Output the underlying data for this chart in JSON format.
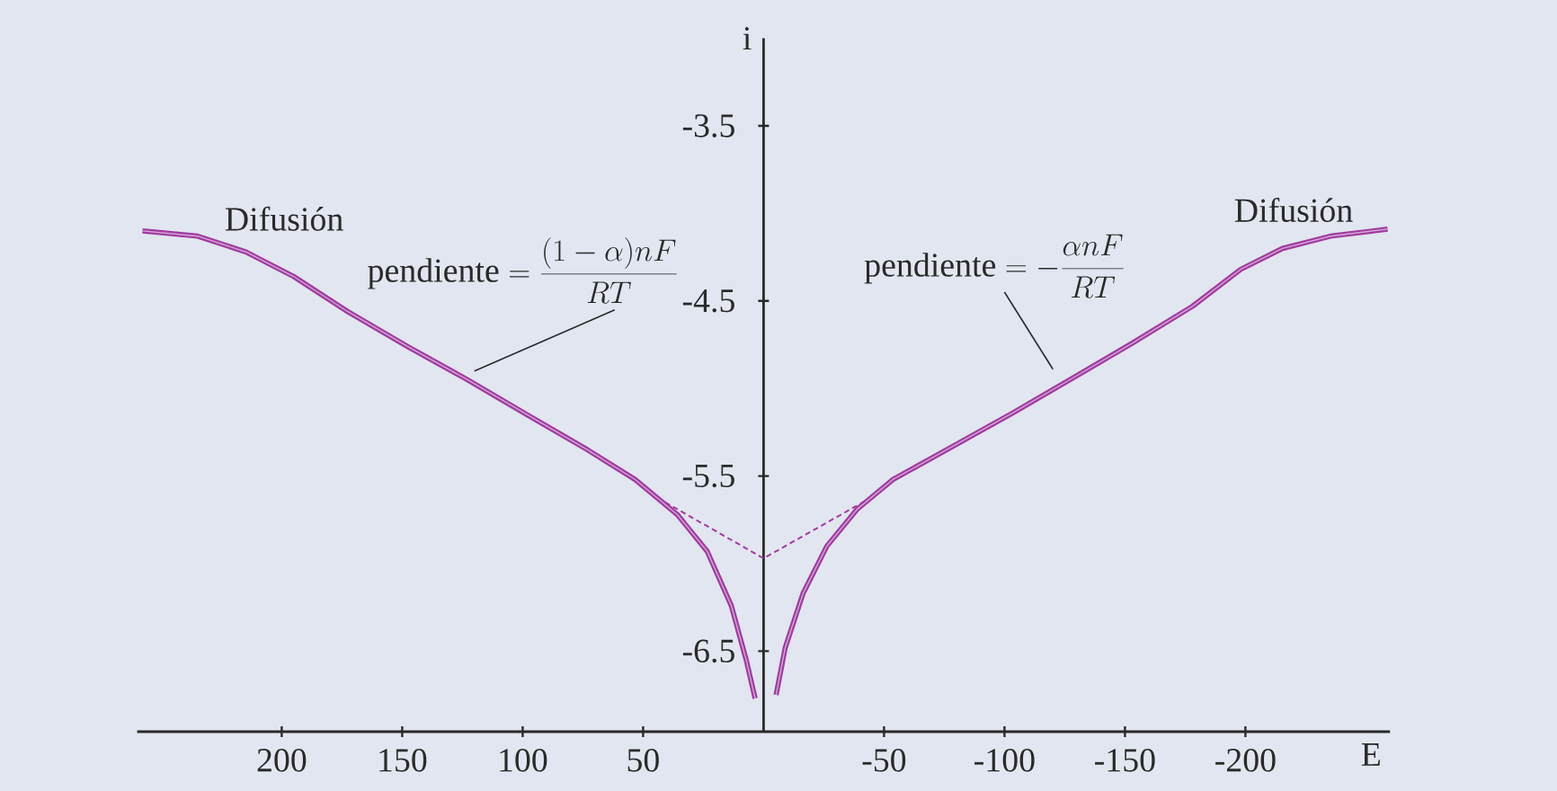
{
  "chart_data": {
    "type": "line",
    "xlabel": "E",
    "ylabel": "i",
    "xlim": [
      260,
      -260
    ],
    "ylim": [
      -6.96,
      -3.0
    ],
    "xticks": [
      200,
      150,
      100,
      50,
      -50,
      -100,
      -150,
      -200
    ],
    "yticks": [
      -3.5,
      -4.5,
      -5.5,
      -6.5
    ],
    "series": [
      {
        "color": "#a03ca0",
        "x": [
          257.8,
          234.9,
          214.9,
          195.1,
          172.7,
          147.8,
          122.9,
          98.1,
          73.1,
          53.3,
          35.8,
          23.4,
          13.4,
          7.2,
          3.5
        ],
        "values": [
          -4.1,
          -4.13,
          -4.22,
          -4.36,
          -4.56,
          -4.76,
          -4.95,
          -5.15,
          -5.35,
          -5.52,
          -5.72,
          -5.93,
          -6.24,
          -6.55,
          -6.77
        ]
      },
      {
        "color": "#a03ca0",
        "x": [
          -5.2,
          -9.0,
          -16.4,
          -26.3,
          -38.8,
          -53.7,
          -78.6,
          -103.4,
          -128.4,
          -153.2,
          -178.1,
          -198.0,
          -215.4,
          -235.3,
          -259.0
        ],
        "values": [
          -6.75,
          -6.48,
          -6.17,
          -5.9,
          -5.69,
          -5.52,
          -5.33,
          -5.14,
          -4.94,
          -4.74,
          -4.53,
          -4.32,
          -4.2,
          -4.13,
          -4.09
        ]
      },
      {
        "color": "#a03ca0",
        "line_style": "dashed",
        "x": [
          40.8,
          0,
          -42.5
        ],
        "values": [
          -5.65,
          -5.97,
          -5.64
        ]
      }
    ],
    "annotations": [
      "Difusión",
      "Difusión",
      {
        "text": "\\mathrm{pendiente}=\\frac{(1-\\alpha)nF}{RT}",
        "x": 120,
        "y": -4.9
      },
      "\\mathrm{pendiente}=-\\frac{\\alpha nF}{RT}"
    ]
  }
}
